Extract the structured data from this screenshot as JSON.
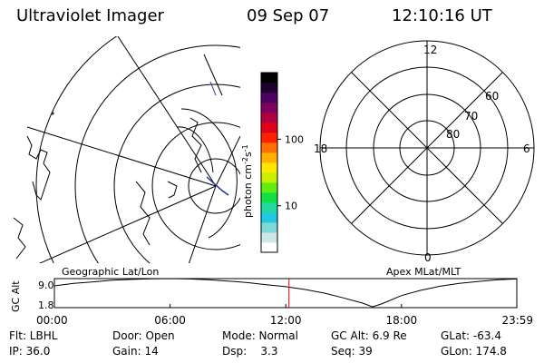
{
  "header": {
    "title": "Ultraviolet Imager",
    "date": "09 Sep 07",
    "time": "12:10:16 UT"
  },
  "maps": {
    "left_label": "Geographic Lat/Lon",
    "right_label": "Apex MLat/MLT"
  },
  "colorbar": {
    "unit_label": "photon cm",
    "unit_sup1": "-2",
    "unit_s": "s",
    "unit_sup2": "-1",
    "tick_labels": [
      "100",
      "10"
    ],
    "tick_values": [
      100,
      10
    ],
    "range": [
      2,
      1000
    ],
    "scale": "log",
    "colors": [
      "#ffffff",
      "#cfe6e6",
      "#7fd8d8",
      "#20c8e0",
      "#20d8a0",
      "#10e040",
      "#60ee10",
      "#c8f000",
      "#ffe800",
      "#ffb000",
      "#ff7000",
      "#ff2000",
      "#e00018",
      "#b00040",
      "#800060",
      "#500060",
      "#200030",
      "#000000"
    ]
  },
  "polar": {
    "mlt_labels": [
      "12",
      "6",
      "0",
      "18"
    ],
    "lat_labels": [
      "60",
      "70",
      "80"
    ]
  },
  "alt_plot": {
    "ylabel": "GC Alt",
    "ymax_label": "9.0",
    "ymin_label": "1.8",
    "ylim": [
      1.8,
      9.0
    ],
    "xticks": [
      "00:00",
      "06:00",
      "12:00",
      "18:00",
      "23:59"
    ],
    "marker_time": "12:10",
    "points": [
      {
        "x": 0.0,
        "y": 7.2
      },
      {
        "x": 1.0,
        "y": 7.8
      },
      {
        "x": 2.0,
        "y": 8.2
      },
      {
        "x": 3.0,
        "y": 8.6
      },
      {
        "x": 4.0,
        "y": 8.8
      },
      {
        "x": 5.0,
        "y": 8.95
      },
      {
        "x": 6.0,
        "y": 9.0
      },
      {
        "x": 7.0,
        "y": 8.9
      },
      {
        "x": 8.0,
        "y": 8.7
      },
      {
        "x": 9.0,
        "y": 8.4
      },
      {
        "x": 10.0,
        "y": 8.0
      },
      {
        "x": 11.0,
        "y": 7.5
      },
      {
        "x": 12.0,
        "y": 7.0
      },
      {
        "x": 13.0,
        "y": 6.3
      },
      {
        "x": 14.0,
        "y": 5.4
      },
      {
        "x": 15.0,
        "y": 4.2
      },
      {
        "x": 16.0,
        "y": 2.9
      },
      {
        "x": 16.5,
        "y": 2.0
      },
      {
        "x": 17.0,
        "y": 2.8
      },
      {
        "x": 18.0,
        "y": 4.8
      },
      {
        "x": 19.0,
        "y": 6.1
      },
      {
        "x": 20.0,
        "y": 7.1
      },
      {
        "x": 21.0,
        "y": 7.8
      },
      {
        "x": 22.0,
        "y": 8.3
      },
      {
        "x": 23.0,
        "y": 8.7
      },
      {
        "x": 23.98,
        "y": 8.9
      }
    ]
  },
  "info": [
    [
      "Flt: LBHL",
      "Door: Open",
      "Mode: Normal",
      "GC Alt: 6.9 Re",
      "GLat: -63.4"
    ],
    [
      "IP: 36.0",
      "Gain: 14",
      "Dsp:    3.3",
      "Seq: 39",
      "GLon: 174.8"
    ]
  ]
}
